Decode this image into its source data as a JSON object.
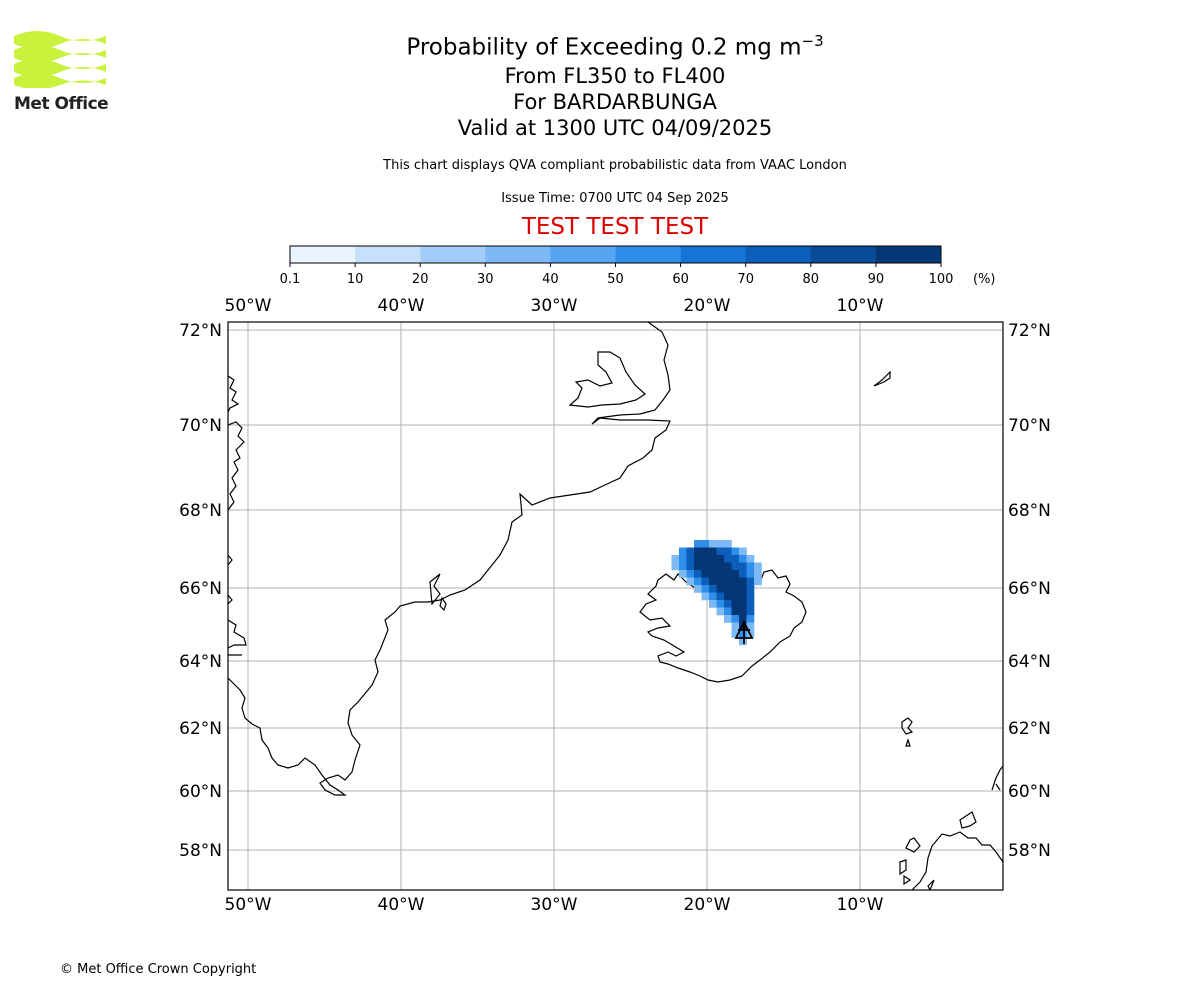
{
  "header": {
    "logo_text": "Met Office",
    "title_main": "Probability of Exceeding 0.2 mg m",
    "title_exp": "−3",
    "line2": "From FL350 to FL400",
    "line3": "For BARDARBUNGA",
    "line4": "Valid at 1300 UTC 04/09/2025",
    "info": "This chart displays QVA compliant probabilistic data from VAAC London",
    "issue": "Issue Time: 0700 UTC 04 Sep 2025",
    "test": "TEST TEST TEST"
  },
  "colorbar": {
    "ticks": [
      "0.1",
      "10",
      "20",
      "30",
      "40",
      "50",
      "60",
      "70",
      "80",
      "90",
      "100"
    ],
    "unit": "(%)",
    "colors": [
      "#eaf4fe",
      "#c7e1fb",
      "#a2cdf8",
      "#7cb9f5",
      "#56a5f1",
      "#2e8ee9",
      "#1574d6",
      "#0b5eba",
      "#084c98",
      "#053776"
    ]
  },
  "map": {
    "lon_labels": [
      "50°W",
      "40°W",
      "30°W",
      "20°W",
      "10°W"
    ],
    "lat_labels": [
      "72°N",
      "70°N",
      "68°N",
      "66°N",
      "64°N",
      "62°N",
      "60°N",
      "58°N"
    ],
    "volcano_symbol_color": "#000000",
    "plume_colors": [
      "#c7e1fb",
      "#7cb9f5",
      "#2e8ee9",
      "#0b5eba",
      "#053776"
    ]
  },
  "footer": {
    "copyright": "© Met Office Crown Copyright"
  }
}
